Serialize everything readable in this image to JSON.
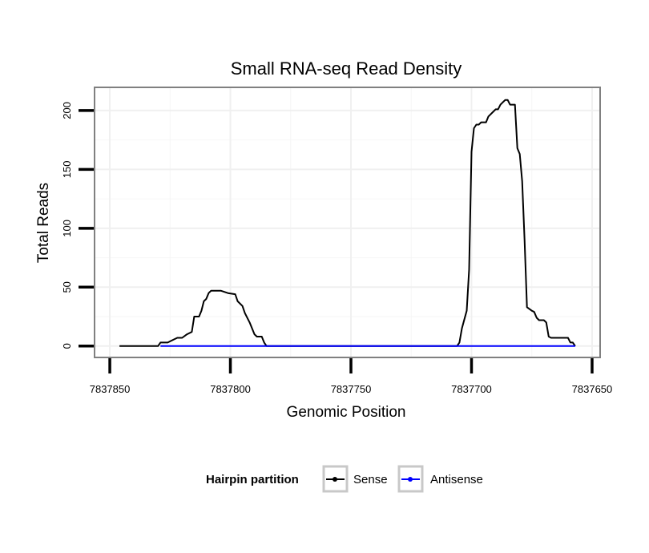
{
  "chart_data": {
    "type": "line",
    "title": "Small RNA-seq Read Density",
    "xlabel": "Genomic Position",
    "ylabel": "Total Reads",
    "x_reversed": true,
    "xlim": [
      7837856,
      7837647
    ],
    "ylim": [
      -9,
      219
    ],
    "x_ticks": [
      7837850,
      7837800,
      7837750,
      7837700,
      7837650
    ],
    "x_tick_labels": [
      "7837850",
      "7837800",
      "7837750",
      "7837700",
      "7837650"
    ],
    "y_ticks": [
      0,
      50,
      100,
      150,
      200
    ],
    "y_tick_labels": [
      "0",
      "50",
      "100",
      "150",
      "200"
    ],
    "grid": true,
    "legend": {
      "title": "Hairpin partition",
      "position": "bottom",
      "entries": [
        "Sense",
        "Antisense"
      ]
    },
    "series": [
      {
        "name": "Sense",
        "color": "#000000",
        "points": [
          [
            7837846,
            0
          ],
          [
            7837830,
            0
          ],
          [
            7837829,
            3
          ],
          [
            7837826,
            3
          ],
          [
            7837824,
            5
          ],
          [
            7837822,
            7
          ],
          [
            7837820,
            7
          ],
          [
            7837818,
            10
          ],
          [
            7837816,
            12
          ],
          [
            7837815,
            25
          ],
          [
            7837813,
            25
          ],
          [
            7837812,
            30
          ],
          [
            7837811,
            38
          ],
          [
            7837810,
            40
          ],
          [
            7837809,
            45
          ],
          [
            7837808,
            47
          ],
          [
            7837804,
            47
          ],
          [
            7837801,
            45
          ],
          [
            7837798,
            44
          ],
          [
            7837797,
            38
          ],
          [
            7837795,
            34
          ],
          [
            7837794,
            28
          ],
          [
            7837792,
            20
          ],
          [
            7837791,
            15
          ],
          [
            7837790,
            10
          ],
          [
            7837789,
            8
          ],
          [
            7837787,
            8
          ],
          [
            7837786,
            3
          ],
          [
            7837785,
            0
          ],
          [
            7837706,
            0
          ],
          [
            7837705,
            3
          ],
          [
            7837704,
            15
          ],
          [
            7837702,
            30
          ],
          [
            7837701,
            65
          ],
          [
            7837700,
            165
          ],
          [
            7837699,
            185
          ],
          [
            7837698,
            188
          ],
          [
            7837697,
            188
          ],
          [
            7837696,
            190
          ],
          [
            7837694,
            190
          ],
          [
            7837693,
            195
          ],
          [
            7837691,
            199
          ],
          [
            7837690,
            201
          ],
          [
            7837689,
            201
          ],
          [
            7837688,
            205
          ],
          [
            7837687,
            207
          ],
          [
            7837686,
            209
          ],
          [
            7837685,
            209
          ],
          [
            7837684,
            205
          ],
          [
            7837682,
            205
          ],
          [
            7837681,
            168
          ],
          [
            7837680,
            163
          ],
          [
            7837679,
            140
          ],
          [
            7837678,
            90
          ],
          [
            7837677,
            33
          ],
          [
            7837675,
            30
          ],
          [
            7837674,
            29
          ],
          [
            7837673,
            24
          ],
          [
            7837672,
            22
          ],
          [
            7837670,
            22
          ],
          [
            7837669,
            20
          ],
          [
            7837668,
            8
          ],
          [
            7837667,
            7
          ],
          [
            7837660,
            7
          ],
          [
            7837659,
            3
          ],
          [
            7837658,
            3
          ],
          [
            7837657,
            0
          ]
        ]
      },
      {
        "name": "Antisense",
        "color": "#0000ff",
        "points": [
          [
            7837829,
            0
          ],
          [
            7837657,
            0
          ]
        ]
      }
    ]
  }
}
